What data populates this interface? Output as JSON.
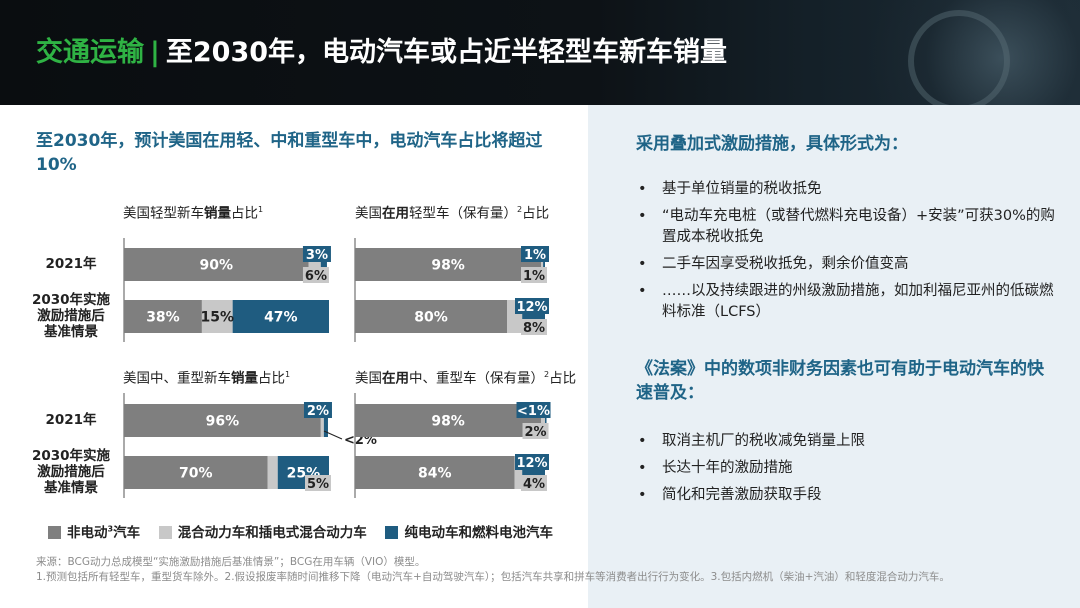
{
  "header": {
    "topic": "交通运输",
    "separator": "|",
    "title": "至2030年，电动汽车或占近半轻型车新车销量"
  },
  "left": {
    "heading": "至2030年，预计美国在用轻、中和重型车中，电动汽车占比将超过10%"
  },
  "colors": {
    "non_ev": "#7f7f7f",
    "hybrid": "#c8c8c8",
    "bev_fcev": "#1f5c80",
    "heading_blue": "#1f6487",
    "topic_green": "#2fb344"
  },
  "chart_data": [
    {
      "type": "bar",
      "orientation": "horizontal-stacked",
      "title_parts": [
        "美国轻型新车",
        "销量",
        "占比"
      ],
      "title_sup": "1",
      "categories": [
        "2021年",
        "2030年实施激励措施后基准情景"
      ],
      "series": [
        {
          "name": "非电动³汽车",
          "values": [
            90,
            38
          ]
        },
        {
          "name": "混合动力车和插电式混合动力车",
          "values": [
            6,
            15
          ]
        },
        {
          "name": "纯电动车和燃料电池汽车",
          "values": [
            3,
            47
          ]
        }
      ],
      "data_labels": [
        [
          "90%",
          "6%",
          "3%"
        ],
        [
          "38%",
          "15%",
          "47%"
        ]
      ],
      "xlim": [
        0,
        100
      ]
    },
    {
      "type": "bar",
      "orientation": "horizontal-stacked",
      "title_parts": [
        "美国",
        "在用",
        "轻型车（保有量）"
      ],
      "title_sup": "2",
      "title_suffix": "占比",
      "categories": [
        "2021年",
        "2030年实施激励措施后基准情景"
      ],
      "series": [
        {
          "name": "非电动³汽车",
          "values": [
            98,
            80
          ]
        },
        {
          "name": "混合动力车和插电式混合动力车",
          "values": [
            1,
            8
          ]
        },
        {
          "name": "纯电动车和燃料电池汽车",
          "values": [
            1,
            12
          ]
        }
      ],
      "data_labels": [
        [
          "98%",
          "1%",
          "1%"
        ],
        [
          "80%",
          "8%",
          "12%"
        ]
      ],
      "xlim": [
        0,
        100
      ]
    },
    {
      "type": "bar",
      "orientation": "horizontal-stacked",
      "title_parts": [
        "美国中、重型新车",
        "销量",
        "占比"
      ],
      "title_sup": "1",
      "categories": [
        "2021年",
        "2030年实施激励措施后基准情景"
      ],
      "series": [
        {
          "name": "非电动³汽车",
          "values": [
            96,
            70
          ]
        },
        {
          "name": "混合动力车和插电式混合动力车",
          "values": [
            1.5,
            5
          ]
        },
        {
          "name": "纯电动车和燃料电池汽车",
          "values": [
            2,
            25
          ]
        }
      ],
      "data_labels": [
        [
          "96%",
          "<2%",
          "2%"
        ],
        [
          "70%",
          "5%",
          "25%"
        ]
      ],
      "xlim": [
        0,
        100
      ]
    },
    {
      "type": "bar",
      "orientation": "horizontal-stacked",
      "title_parts": [
        "美国",
        "在用",
        "中、重型车（保有量）"
      ],
      "title_sup": "2",
      "title_suffix": "占比",
      "categories": [
        "2021年",
        "2030年实施激励措施后基准情景"
      ],
      "series": [
        {
          "name": "非电动³汽车",
          "values": [
            98,
            84
          ]
        },
        {
          "name": "混合动力车和插电式混合动力车",
          "values": [
            2,
            4
          ]
        },
        {
          "name": "纯电动车和燃料电池汽车",
          "values": [
            0.8,
            12
          ]
        }
      ],
      "data_labels": [
        [
          "98%",
          "2%",
          "<1%"
        ],
        [
          "84%",
          "4%",
          "12%"
        ]
      ],
      "xlim": [
        0,
        100
      ]
    }
  ],
  "row_labels": {
    "year_2021": "2021年",
    "scenario_line1": "2030年实施",
    "scenario_line2": "激励措施后",
    "scenario_line3": "基准情景"
  },
  "legend": {
    "non_ev": "非电动",
    "non_ev_sup": "3",
    "non_ev_suffix": "汽车",
    "hybrid": "混合动力车和插电式混合动力车",
    "bev": "纯电动车和燃料电池汽车"
  },
  "right": {
    "heading1": "采用叠加式激励措施，具体形式为：",
    "bullets1": [
      "基于单位销量的税收抵免",
      "“电动车充电桩（或替代燃料充电设备）+安装”可获30%的购置成本税收抵免",
      "二手车因享受税收抵免，剩余价值变高",
      "……以及持续跟进的州级激励措施，如加利福尼亚州的低碳燃料标准（LCFS）"
    ],
    "heading2": "《法案》中的数项非财务因素也可有助于电动汽车的快速普及：",
    "bullets2": [
      "取消主机厂的税收减免销量上限",
      "长达十年的激励措施",
      "简化和完善激励获取手段"
    ]
  },
  "footnote": {
    "source": "来源：BCG动力总成模型“实施激励措施后基准情景”；BCG在用车辆（VIO）模型。",
    "notes": "1.预测包括所有轻型车，重型货车除外。2.假设报废率随时间推移下降（电动汽车+自动驾驶汽车）；包括汽车共享和拼车等消费者出行行为变化。3.包括内燃机（柴油+汽油）和轻度混合动力汽车。"
  }
}
